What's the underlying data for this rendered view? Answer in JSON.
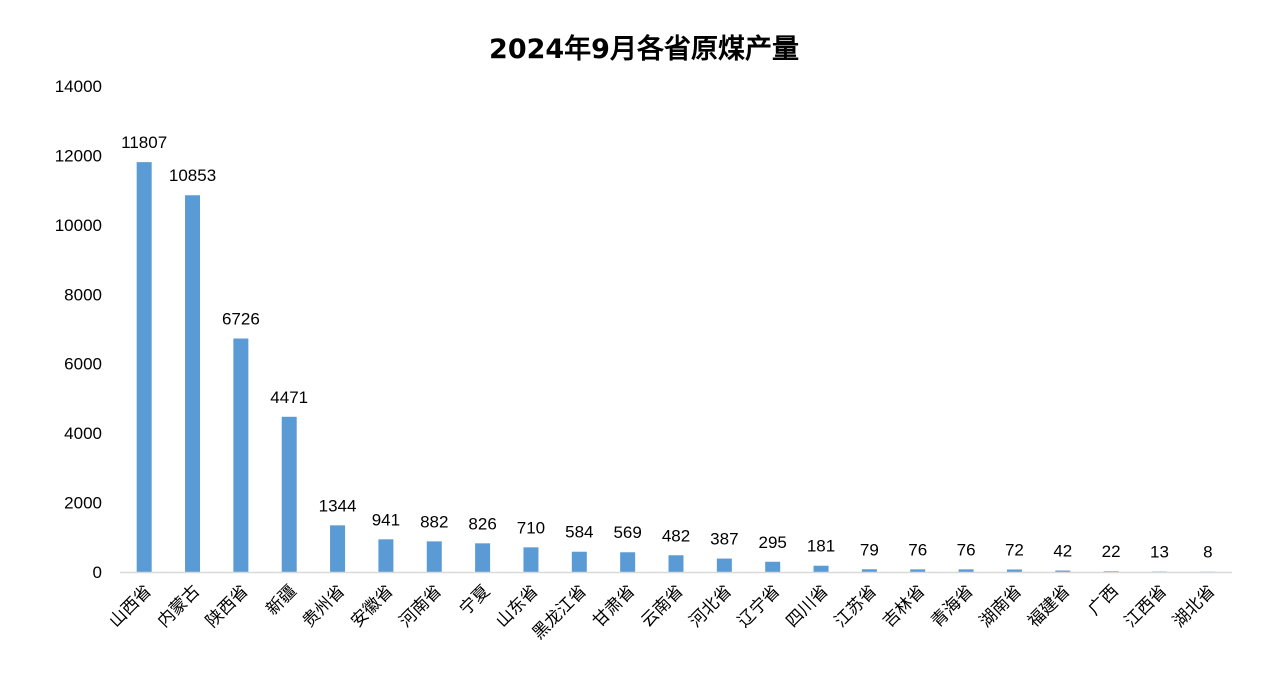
{
  "chart_data": {
    "type": "bar",
    "title": "2024年9月各省原煤产量",
    "categories": [
      "山西省",
      "内蒙古",
      "陕西省",
      "新疆",
      "贵州省",
      "安徽省",
      "河南省",
      "宁夏",
      "山东省",
      "黑龙江省",
      "甘肃省",
      "云南省",
      "河北省",
      "辽宁省",
      "四川省",
      "江苏省",
      "吉林省",
      "青海省",
      "湖南省",
      "福建省",
      "广西",
      "江西省",
      "湖北省"
    ],
    "values": [
      11807,
      10853,
      6726,
      4471,
      1344,
      941,
      882,
      826,
      710,
      584,
      569,
      482,
      387,
      295,
      181,
      79,
      76,
      76,
      72,
      42,
      22,
      13,
      8
    ],
    "data_labels": [
      "11807",
      "10853",
      "6726",
      "4471",
      "1344",
      "941",
      "882",
      "826",
      "710",
      "584",
      "569",
      "482",
      "387",
      "295",
      "181",
      "79",
      "76",
      "76",
      "72",
      "42",
      "22",
      "13",
      "8"
    ],
    "yticks": [
      "0",
      "2000",
      "4000",
      "6000",
      "8000",
      "10000",
      "12000",
      "14000"
    ],
    "ylim": [
      0,
      14000
    ],
    "xlabel": "",
    "ylabel": "",
    "grid": false,
    "legend": "none",
    "bar_color": "#5b9bd5",
    "axis_color": "#d9d9d9"
  }
}
